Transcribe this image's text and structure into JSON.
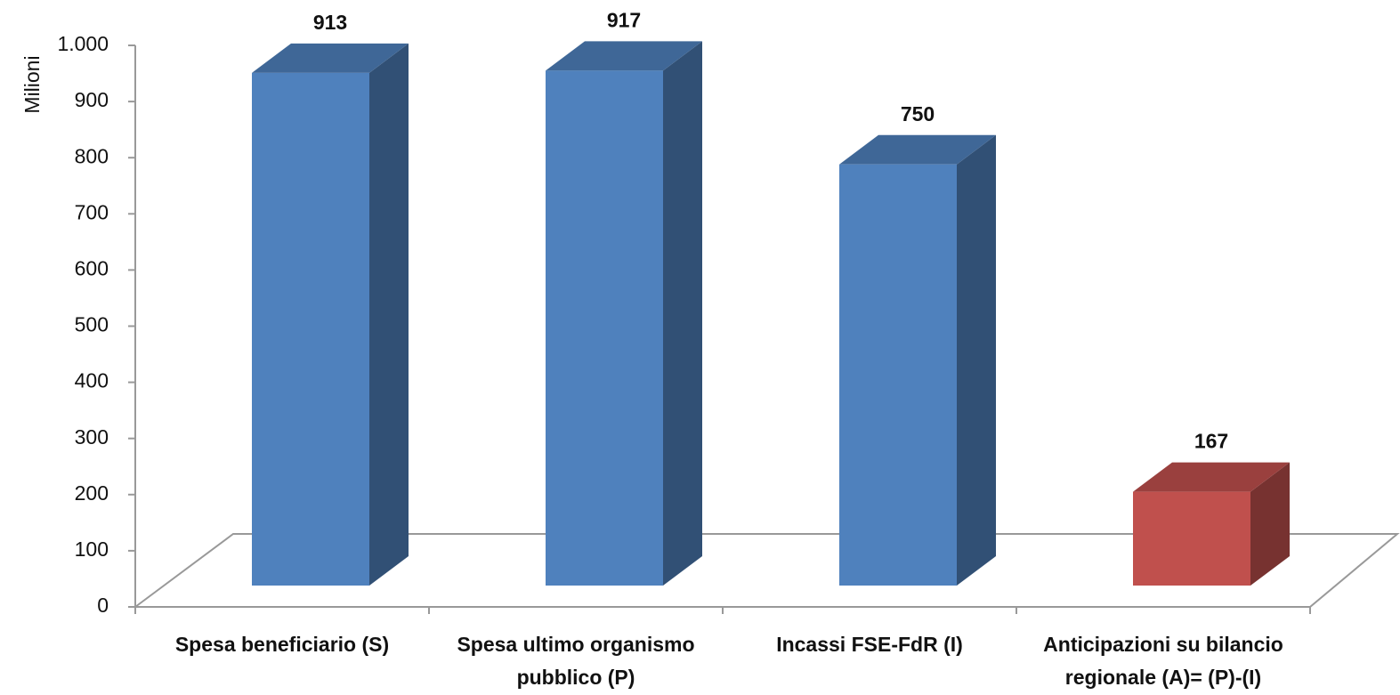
{
  "chart_data": {
    "type": "bar3d",
    "y_label": "Milioni",
    "categories": [
      [
        "Spesa beneficiario (S)"
      ],
      [
        "Spesa ultimo organismo",
        "pubblico (P)"
      ],
      [
        "Incassi FSE-FdR (I)"
      ],
      [
        "Anticipazioni su bilancio",
        "regionale (A)= (P)-(I)"
      ]
    ],
    "values": [
      913,
      917,
      750,
      167
    ],
    "colors": [
      "#4f81bd",
      "#4f81bd",
      "#4f81bd",
      "#c0504d"
    ],
    "ylim": [
      0,
      1000
    ],
    "yticks": [
      0,
      100,
      200,
      300,
      400,
      500,
      600,
      700,
      800,
      900,
      {
        "value": 1000,
        "label": "1.000"
      }
    ]
  }
}
